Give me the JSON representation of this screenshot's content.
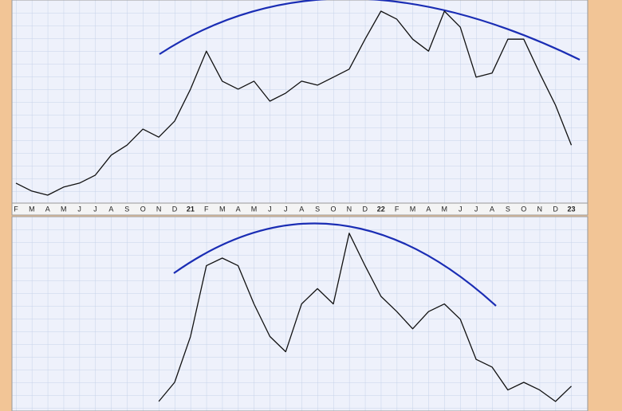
{
  "chart_data": [
    {
      "type": "line",
      "categories": [
        "F",
        "M",
        "A",
        "M",
        "J",
        "J",
        "A",
        "S",
        "O",
        "N",
        "D",
        "21",
        "F",
        "M",
        "A",
        "M",
        "J",
        "J",
        "A",
        "S",
        "O",
        "N",
        "D",
        "22",
        "F",
        "M",
        "A",
        "M",
        "J",
        "J",
        "A",
        "S",
        "O",
        "N",
        "D",
        "23"
      ],
      "values": [
        10,
        6,
        4,
        8,
        10,
        14,
        24,
        29,
        37,
        33,
        41,
        57,
        76,
        61,
        57,
        61,
        51,
        55,
        61,
        59,
        63,
        67,
        82,
        96,
        92,
        82,
        76,
        96,
        88,
        63,
        65,
        82,
        82,
        65,
        49,
        29
      ],
      "ylim": [
        0,
        100
      ],
      "grid": true,
      "color": "#111111"
    },
    {
      "type": "line",
      "values": [
        null,
        null,
        null,
        null,
        null,
        null,
        null,
        null,
        null,
        5,
        15,
        39,
        76,
        80,
        76,
        56,
        39,
        31,
        56,
        64,
        56,
        93,
        76,
        60,
        52,
        43,
        52,
        56,
        48,
        27,
        23,
        11,
        15,
        11,
        5,
        13
      ],
      "ylim": [
        0,
        100
      ],
      "grid": true,
      "color": "#111111"
    }
  ]
}
